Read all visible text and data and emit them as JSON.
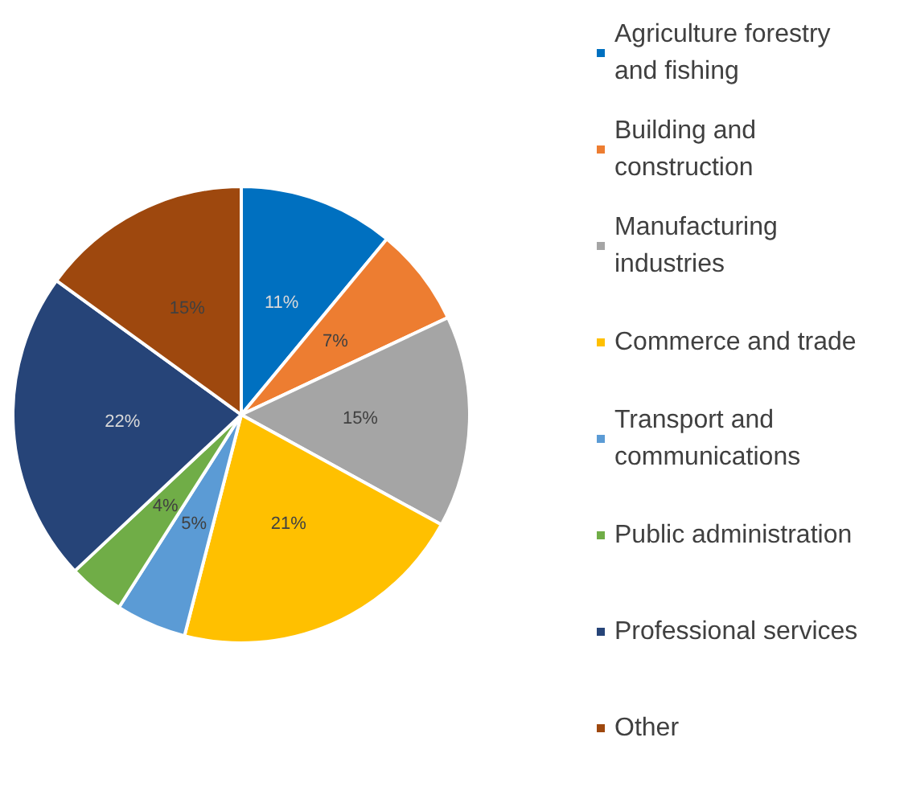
{
  "chart_data": {
    "type": "pie",
    "categories": [
      "Agriculture forestry and fishing",
      "Building and construction",
      "Manufacturing industries",
      "Commerce and trade",
      "Transport and communications",
      "Public administration",
      "Professional services",
      "Other"
    ],
    "values": [
      11,
      7,
      15,
      21,
      5,
      4,
      22,
      15
    ],
    "value_labels": [
      "11%",
      "7%",
      "15%",
      "21%",
      "5%",
      "4%",
      "22%",
      "15%"
    ],
    "colors": [
      "#0070c0",
      "#ed7d31",
      "#a5a5a5",
      "#ffc000",
      "#5b9bd5",
      "#70ad47",
      "#264478",
      "#9e480e"
    ],
    "legend": "right"
  }
}
